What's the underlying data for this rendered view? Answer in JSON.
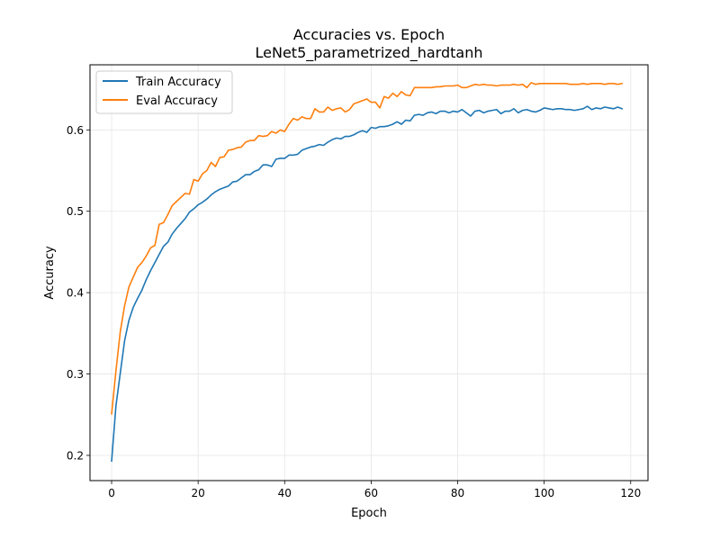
{
  "chart_data": {
    "type": "line",
    "title": "Accuracies vs. Epoch",
    "subtitle": "LeNet5_parametrized_hardtanh",
    "xlabel": "Epoch",
    "ylabel": "Accuracy",
    "xlim": [
      -5,
      124
    ],
    "ylim": [
      0.169,
      0.68
    ],
    "xticks": [
      0,
      20,
      40,
      60,
      80,
      100,
      120
    ],
    "yticks": [
      0.2,
      0.3,
      0.4,
      0.5,
      0.6
    ],
    "xtick_labels": [
      "0",
      "20",
      "40",
      "60",
      "80",
      "100",
      "120"
    ],
    "ytick_labels": [
      "0.2",
      "0.3",
      "0.4",
      "0.5",
      "0.6"
    ],
    "grid": true,
    "legend_position": "upper-left",
    "series": [
      {
        "name": "Train Accuracy",
        "color": "#1f77b4",
        "values": [
          0.193,
          0.261,
          0.301,
          0.341,
          0.366,
          0.382,
          0.393,
          0.403,
          0.416,
          0.427,
          0.437,
          0.447,
          0.457,
          0.462,
          0.472,
          0.479,
          0.485,
          0.491,
          0.499,
          0.503,
          0.508,
          0.511,
          0.515,
          0.52,
          0.524,
          0.527,
          0.529,
          0.531,
          0.536,
          0.537,
          0.541,
          0.545,
          0.545,
          0.549,
          0.551,
          0.557,
          0.557,
          0.555,
          0.564,
          0.565,
          0.565,
          0.569,
          0.569,
          0.57,
          0.575,
          0.577,
          0.579,
          0.58,
          0.582,
          0.581,
          0.585,
          0.588,
          0.59,
          0.589,
          0.592,
          0.592,
          0.594,
          0.597,
          0.599,
          0.597,
          0.603,
          0.602,
          0.604,
          0.604,
          0.605,
          0.607,
          0.61,
          0.607,
          0.612,
          0.611,
          0.618,
          0.619,
          0.618,
          0.621,
          0.622,
          0.62,
          0.623,
          0.623,
          0.621,
          0.623,
          0.622,
          0.625,
          0.621,
          0.617,
          0.623,
          0.624,
          0.621,
          0.623,
          0.624,
          0.625,
          0.62,
          0.623,
          0.623,
          0.626,
          0.621,
          0.624,
          0.625,
          0.623,
          0.622,
          0.624,
          0.627,
          0.626,
          0.625,
          0.626,
          0.626,
          0.625,
          0.625,
          0.624,
          0.625,
          0.626,
          0.629,
          0.625,
          0.627,
          0.626,
          0.628,
          0.627,
          0.626,
          0.628,
          0.626
        ]
      },
      {
        "name": "Eval Accuracy",
        "color": "#ff7f0e",
        "values": [
          0.251,
          0.304,
          0.352,
          0.384,
          0.407,
          0.419,
          0.431,
          0.437,
          0.445,
          0.455,
          0.458,
          0.484,
          0.486,
          0.496,
          0.507,
          0.512,
          0.517,
          0.522,
          0.521,
          0.539,
          0.537,
          0.546,
          0.55,
          0.56,
          0.555,
          0.566,
          0.567,
          0.575,
          0.576,
          0.578,
          0.579,
          0.585,
          0.587,
          0.587,
          0.593,
          0.592,
          0.593,
          0.598,
          0.596,
          0.6,
          0.598,
          0.607,
          0.614,
          0.612,
          0.616,
          0.614,
          0.614,
          0.626,
          0.622,
          0.622,
          0.628,
          0.624,
          0.626,
          0.627,
          0.622,
          0.625,
          0.632,
          0.634,
          0.636,
          0.638,
          0.634,
          0.634,
          0.627,
          0.641,
          0.639,
          0.645,
          0.641,
          0.647,
          0.643,
          0.642,
          0.652,
          0.652,
          0.652,
          0.652,
          0.652,
          0.653,
          0.653,
          0.654,
          0.654,
          0.654,
          0.655,
          0.652,
          0.652,
          0.654,
          0.656,
          0.655,
          0.656,
          0.655,
          0.655,
          0.654,
          0.655,
          0.655,
          0.655,
          0.656,
          0.655,
          0.656,
          0.652,
          0.658,
          0.656,
          0.657,
          0.657,
          0.657,
          0.657,
          0.657,
          0.657,
          0.657,
          0.656,
          0.656,
          0.656,
          0.657,
          0.656,
          0.657,
          0.657,
          0.657,
          0.656,
          0.657,
          0.657,
          0.656,
          0.657
        ]
      }
    ]
  }
}
